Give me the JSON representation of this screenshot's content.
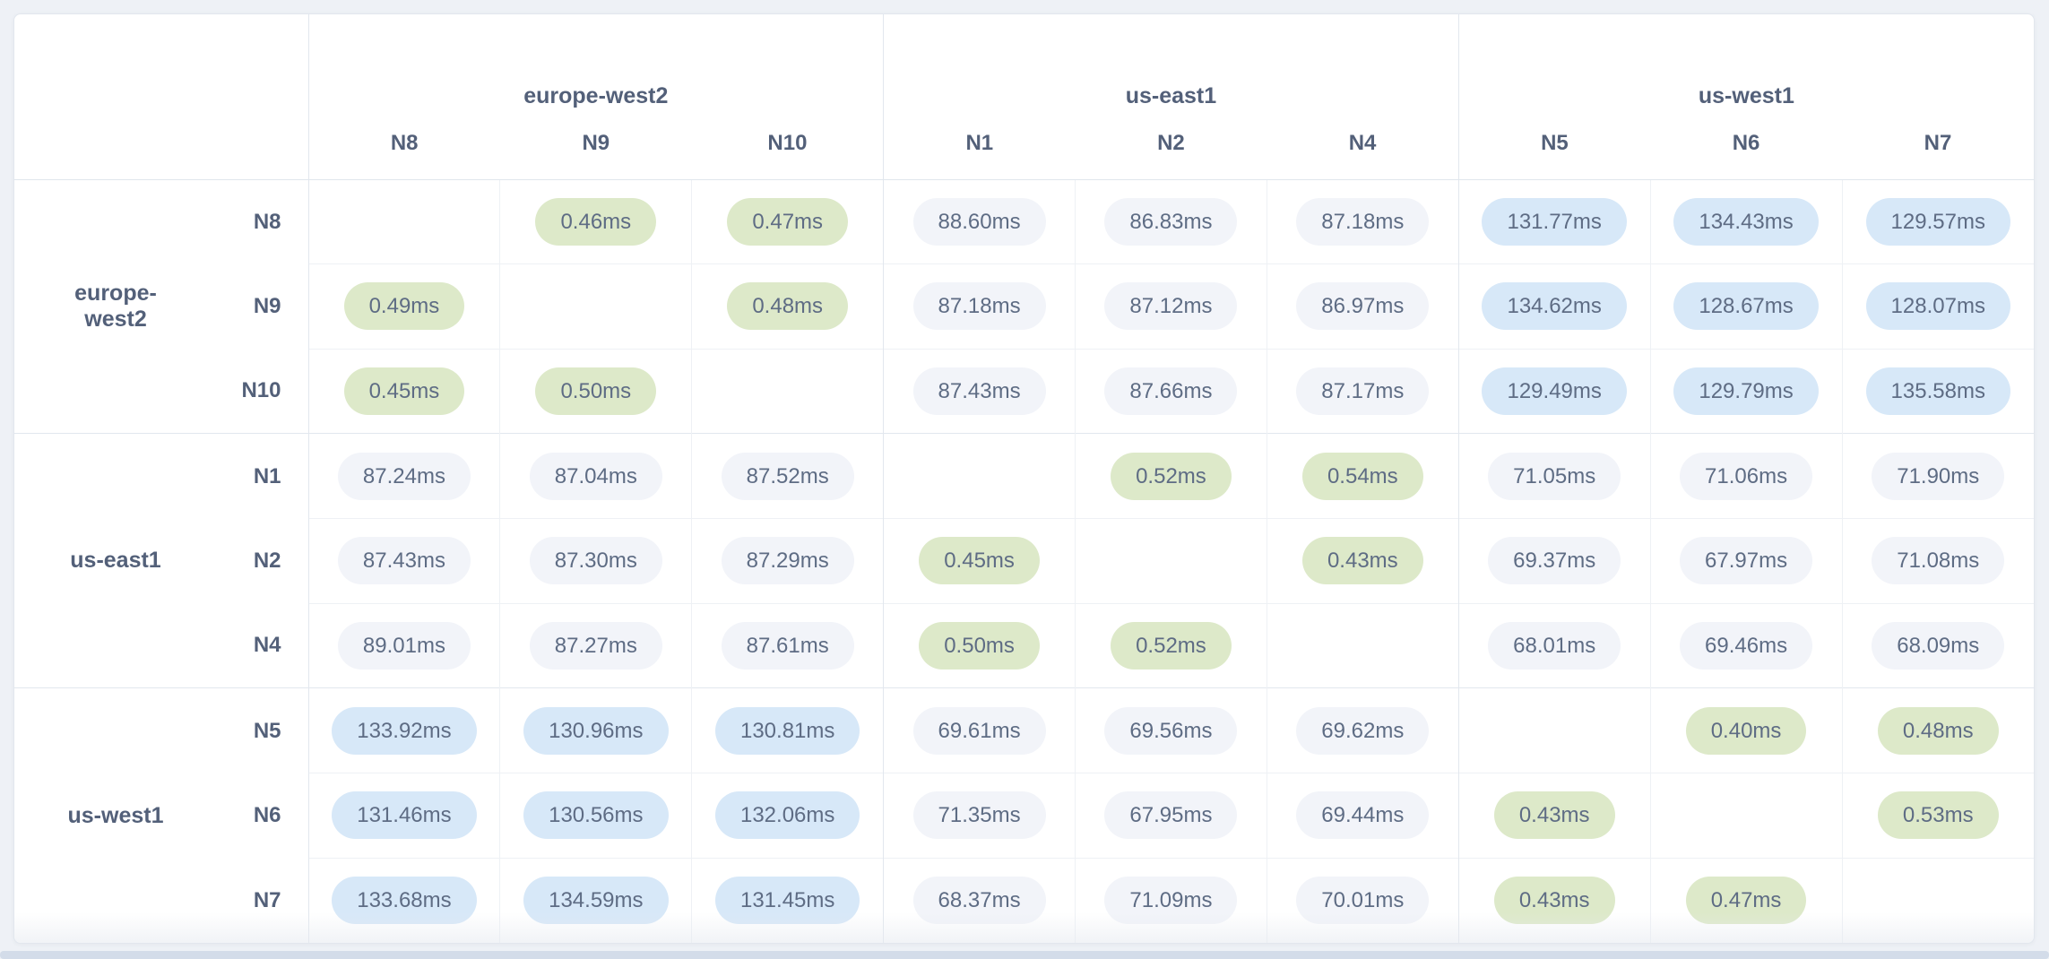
{
  "colors": {
    "page_bg": "#eef1f6",
    "card_bg": "#ffffff",
    "border_light": "#eef1f5",
    "border_group": "#e2e7ee",
    "text": "#5e6c84",
    "text_heading": "#536079",
    "pill_green": "#dde9c9",
    "pill_blue": "#d7e8f8",
    "pill_gray": "#f2f4f9"
  },
  "matrix": {
    "unit": "ms",
    "column_groups": [
      {
        "region": "europe-west2",
        "nodes": [
          "N8",
          "N9",
          "N10"
        ]
      },
      {
        "region": "us-east1",
        "nodes": [
          "N1",
          "N2",
          "N4"
        ]
      },
      {
        "region": "us-west1",
        "nodes": [
          "N5",
          "N6",
          "N7"
        ]
      }
    ],
    "row_groups": [
      {
        "region": "europe-west2",
        "rows": [
          {
            "node": "N8",
            "cells": [
              "",
              "0.46ms",
              "0.47ms",
              "88.60ms",
              "86.83ms",
              "87.18ms",
              "131.77ms",
              "134.43ms",
              "129.57ms"
            ]
          },
          {
            "node": "N9",
            "cells": [
              "0.49ms",
              "",
              "0.48ms",
              "87.18ms",
              "87.12ms",
              "86.97ms",
              "134.62ms",
              "128.67ms",
              "128.07ms"
            ]
          },
          {
            "node": "N10",
            "cells": [
              "0.45ms",
              "0.50ms",
              "",
              "87.43ms",
              "87.66ms",
              "87.17ms",
              "129.49ms",
              "129.79ms",
              "135.58ms"
            ]
          }
        ]
      },
      {
        "region": "us-east1",
        "rows": [
          {
            "node": "N1",
            "cells": [
              "87.24ms",
              "87.04ms",
              "87.52ms",
              "",
              "0.52ms",
              "0.54ms",
              "71.05ms",
              "71.06ms",
              "71.90ms"
            ]
          },
          {
            "node": "N2",
            "cells": [
              "87.43ms",
              "87.30ms",
              "87.29ms",
              "0.45ms",
              "",
              "0.43ms",
              "69.37ms",
              "67.97ms",
              "71.08ms"
            ]
          },
          {
            "node": "N4",
            "cells": [
              "89.01ms",
              "87.27ms",
              "87.61ms",
              "0.50ms",
              "0.52ms",
              "",
              "68.01ms",
              "69.46ms",
              "68.09ms"
            ]
          }
        ]
      },
      {
        "region": "us-west1",
        "rows": [
          {
            "node": "N5",
            "cells": [
              "133.92ms",
              "130.96ms",
              "130.81ms",
              "69.61ms",
              "69.56ms",
              "69.62ms",
              "",
              "0.40ms",
              "0.48ms"
            ]
          },
          {
            "node": "N6",
            "cells": [
              "131.46ms",
              "130.56ms",
              "132.06ms",
              "71.35ms",
              "67.95ms",
              "69.44ms",
              "0.43ms",
              "",
              "0.53ms"
            ]
          },
          {
            "node": "N7",
            "cells": [
              "133.68ms",
              "134.59ms",
              "131.45ms",
              "68.37ms",
              "71.09ms",
              "70.01ms",
              "0.43ms",
              "0.47ms",
              ""
            ]
          }
        ]
      }
    ],
    "tone_thresholds": {
      "green_below_ms": 1,
      "blue_at_or_above_ms": 100
    }
  }
}
